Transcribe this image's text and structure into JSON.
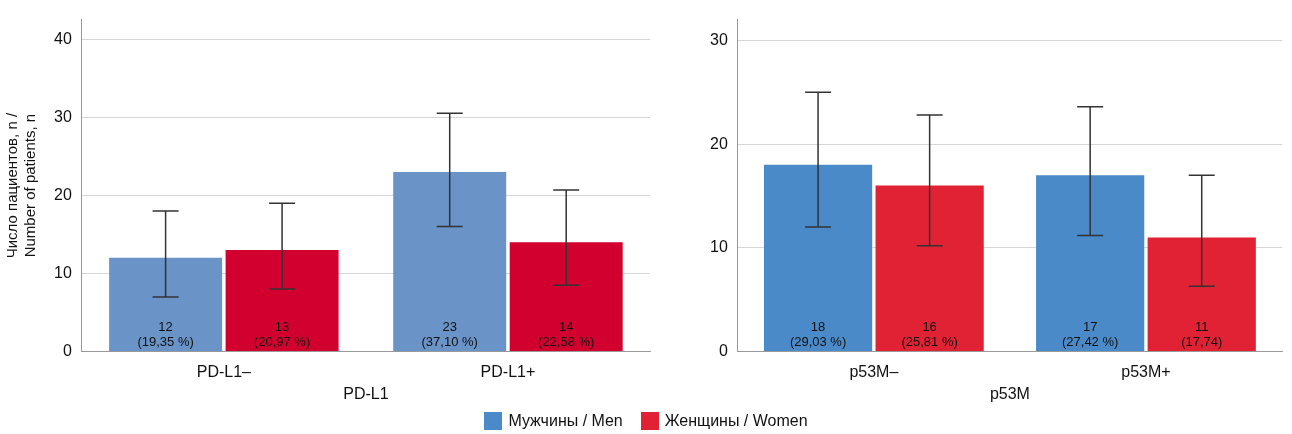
{
  "chart_data": [
    {
      "type": "bar",
      "categories": [
        "PD-L1–",
        "PD-L1+"
      ],
      "xlabel": "PD-L1",
      "ylabel": "Число пациентов, n /\nNumber of patients, n",
      "ylim": [
        0,
        42.5
      ],
      "yticks": [
        0,
        10,
        20,
        30,
        40
      ],
      "grid": "y",
      "series": [
        {
          "color": "#6a93c8",
          "values": [
            12,
            23
          ],
          "errors": [
            [
              7,
              18
            ],
            [
              16,
              30.5
            ]
          ],
          "value_labels": [
            "12\n(19,35 %)",
            "23\n(37,10 %)"
          ]
        },
        {
          "color": "#d2002e",
          "values": [
            13,
            14
          ],
          "errors": [
            [
              8,
              19
            ],
            [
              8.5,
              20.7
            ]
          ],
          "value_labels": [
            "13\n(20,97 %)",
            "14\n(22,58 %)"
          ]
        }
      ]
    },
    {
      "type": "bar",
      "categories": [
        "p53M–",
        "p53M+"
      ],
      "xlabel": "p53M",
      "ylim": [
        0,
        32
      ],
      "yticks": [
        0,
        10,
        20,
        30
      ],
      "grid": "y",
      "legend": "bottom",
      "series": [
        {
          "name": "Мужчины / Men",
          "color": "#4a8ac8",
          "values": [
            18,
            17
          ],
          "errors": [
            [
              12,
              25
            ],
            [
              11.2,
              23.6
            ]
          ],
          "value_labels": [
            "18\n(29,03 %)",
            "17\n(27,42 %)"
          ]
        },
        {
          "name": "Женщины / Women",
          "color": "#e02234",
          "values": [
            16,
            11
          ],
          "errors": [
            [
              10.2,
              22.8
            ],
            [
              6.3,
              17
            ]
          ],
          "value_labels": [
            "16\n(25,81 %)",
            "11\n(17,74)"
          ]
        }
      ]
    }
  ]
}
